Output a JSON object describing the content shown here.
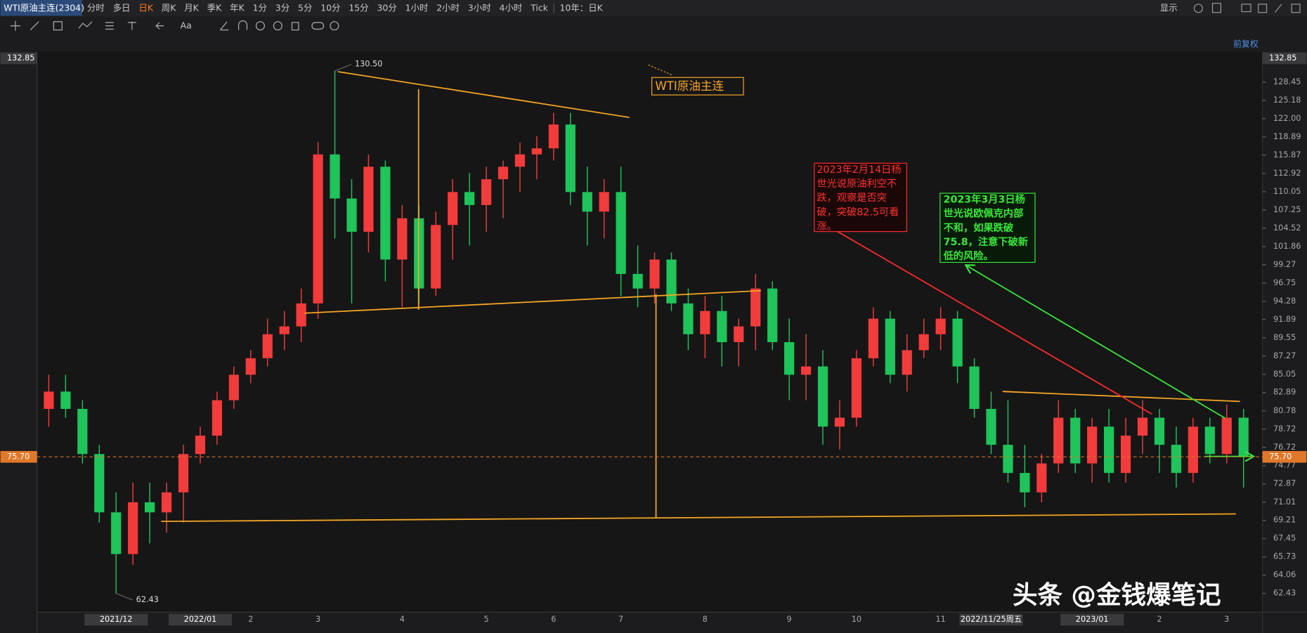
{
  "toolbar": {
    "symbol": "WTI原油主连(2304)",
    "periods": [
      "分时",
      "多日",
      "日K",
      "周K",
      "月K",
      "季K",
      "年K",
      "1分",
      "3分",
      "5分",
      "10分",
      "15分",
      "30分",
      "1小时",
      "2小时",
      "3小时",
      "4小时",
      "Tick"
    ],
    "active_period": "日K",
    "range": "10年：日K",
    "display": "显示",
    "tools_label": "Aa"
  },
  "adjust": "前复权",
  "watermark": "头条 @金钱爆笔记",
  "chart_data": {
    "type": "candlestick",
    "log_scale": true,
    "up_color": "#f23b3b",
    "down_color": "#1fc45a",
    "categories": [
      null,
      null,
      null,
      null,
      "2021/12",
      null,
      null,
      null,
      null,
      "2022/01",
      null,
      null,
      "2",
      null,
      null,
      null,
      "3",
      null,
      null,
      null,
      null,
      "4",
      null,
      null,
      null,
      null,
      "5",
      null,
      null,
      null,
      "6",
      null,
      null,
      null,
      "7",
      null,
      null,
      null,
      null,
      "8",
      null,
      null,
      null,
      null,
      "9",
      null,
      null,
      null,
      "10",
      null,
      null,
      null,
      null,
      "11",
      null,
      null,
      "2022/11/25周五",
      null,
      null,
      null,
      null,
      null,
      "2023/01",
      null,
      null,
      null,
      "2",
      null,
      null,
      null,
      "3",
      null
    ],
    "open": [
      81,
      83,
      81,
      76,
      70,
      66,
      71,
      70,
      72,
      76,
      78,
      82,
      85,
      87,
      90,
      91,
      94,
      116,
      109,
      104,
      114,
      100,
      106,
      96,
      105,
      110,
      108,
      112,
      114,
      116,
      117,
      121,
      110,
      107,
      110,
      98,
      96,
      100,
      94,
      90,
      93,
      89,
      91,
      96,
      89,
      85,
      86,
      79,
      80,
      87,
      92,
      85,
      88,
      90,
      92,
      86,
      81,
      77,
      74,
      72,
      75,
      80,
      75,
      79,
      74,
      78,
      80,
      77,
      74,
      79,
      76,
      80
    ],
    "high": [
      85,
      85,
      82,
      77,
      72,
      73,
      73,
      73,
      77,
      79,
      83,
      86,
      88,
      92,
      93,
      96,
      118,
      130.5,
      112,
      116,
      115,
      108,
      108,
      107,
      112,
      113,
      114,
      115,
      118,
      119,
      123,
      123,
      114,
      112,
      114,
      102,
      101,
      101,
      96,
      95,
      95,
      92,
      98,
      97,
      92,
      90,
      88,
      82,
      88,
      93.5,
      93,
      90,
      92,
      93.5,
      93,
      87,
      83,
      82,
      77,
      76,
      82,
      81,
      80,
      81,
      80,
      82,
      81,
      79,
      80,
      80,
      81.5,
      81
    ],
    "low": [
      79,
      80,
      75,
      69,
      62.43,
      65,
      67,
      68,
      69,
      75,
      77,
      81,
      84,
      86,
      88,
      89,
      92,
      103,
      94,
      101,
      97,
      93.5,
      94,
      95,
      100,
      102,
      104,
      106,
      110,
      112,
      115,
      108,
      102,
      103,
      95,
      93.5,
      94,
      93,
      88,
      87,
      86,
      86,
      88,
      88,
      82,
      82,
      77,
      76.5,
      79,
      86,
      84,
      83,
      87,
      88,
      84,
      80,
      76,
      73,
      70.5,
      71,
      74,
      74,
      73,
      73,
      73,
      76,
      74,
      72.5,
      73,
      75,
      75,
      72.5
    ],
    "close": [
      83,
      81,
      76,
      70,
      66,
      71,
      70,
      72,
      76,
      78,
      82,
      85,
      87,
      90,
      91,
      94,
      116,
      109,
      104,
      114,
      100,
      106,
      96,
      105,
      110,
      108,
      112,
      114,
      116,
      117,
      121,
      110,
      107,
      110,
      98,
      96,
      100,
      94,
      90,
      93,
      89,
      91,
      96,
      89,
      85,
      86,
      79,
      80,
      87,
      92,
      85,
      88,
      90,
      92,
      86,
      81,
      77,
      74,
      72,
      75,
      80,
      75,
      79,
      74,
      78,
      80,
      77,
      74,
      79,
      76,
      80,
      75.7
    ],
    "ylim": [
      60.8,
      134.1
    ],
    "yticks": [
      128.45,
      125.18,
      {
        "value": 122,
        "label": "122.00"
      },
      118.89,
      115.87,
      112.92,
      110.05,
      107.25,
      104.52,
      101.86,
      99.27,
      96.75,
      94.28,
      91.89,
      89.55,
      87.27,
      85.05,
      82.89,
      80.78,
      78.72,
      76.72,
      74.77,
      72.87,
      71.01,
      69.21,
      67.45,
      65.73,
      64.06,
      62.43
    ],
    "axis_high": 132.85,
    "last_price": {
      "value": 75.7,
      "label": "75.70"
    },
    "extreme_labels": [
      {
        "value": 130.5,
        "label": "130.50"
      },
      62.43
    ],
    "annotations": {
      "title_box": "WTI原油主连",
      "note_red": [
        "2023年2月14日杨",
        "世光说原油利空不",
        "跌，观察是否突",
        "破，突破82.5可看",
        "涨。"
      ],
      "note_green": [
        "2023年3月3日杨",
        "世光说欧佩克内部",
        "不和，如果跌破",
        "75.8，注意下破新",
        "低的风险。"
      ]
    }
  }
}
